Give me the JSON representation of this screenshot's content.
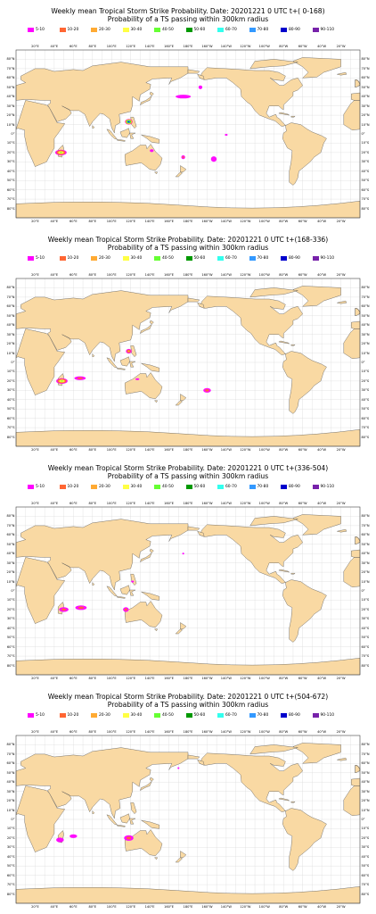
{
  "legend": [
    {
      "label": "5-10",
      "color": "#ff00ff"
    },
    {
      "label": "10-20",
      "color": "#ff6633"
    },
    {
      "label": "20-30",
      "color": "#ffaa33"
    },
    {
      "label": "30-40",
      "color": "#ffff44"
    },
    {
      "label": "40-50",
      "color": "#66ff33"
    },
    {
      "label": "50-60",
      "color": "#009900"
    },
    {
      "label": "60-70",
      "color": "#33ffee"
    },
    {
      "label": "70-80",
      "color": "#3399ff"
    },
    {
      "label": "80-90",
      "color": "#0000cc"
    },
    {
      "label": "90-110",
      "color": "#7722aa"
    }
  ],
  "colors": {
    "land": "#f9d9a3",
    "coast": "#555555",
    "grid": "#d8d8d8",
    "ocean": "#ffffff"
  },
  "lon_labels": [
    "20°E",
    "40°E",
    "60°E",
    "80°E",
    "100°E",
    "120°E",
    "140°E",
    "160°E",
    "180°E",
    "160°W",
    "140°W",
    "120°W",
    "100°W",
    "80°W",
    "60°W",
    "40°W",
    "20°W"
  ],
  "lat_labels": [
    "80°N",
    "70°N",
    "60°N",
    "50°N",
    "40°N",
    "30°N",
    "20°N",
    "10°N",
    "0°",
    "10°S",
    "20°S",
    "30°S",
    "40°S",
    "50°S",
    "60°S",
    "70°S",
    "80°S"
  ],
  "panels": [
    {
      "title1": "Weekly mean Tropical Storm Strike Probability. Date: 20201221  0 UTC    t+( 0-168)",
      "title2": "Probability of a TS passing within  300km radius",
      "features": [
        {
          "lon": 47,
          "lat": -20,
          "rx": 6,
          "ry": 3,
          "level": "40-50"
        },
        {
          "lon": 118,
          "lat": 13,
          "rx": 4,
          "ry": 3,
          "level": "90-110"
        },
        {
          "lon": 175,
          "lat": 40,
          "rx": 8,
          "ry": 2,
          "level": "5-10"
        },
        {
          "lon": 142,
          "lat": -18,
          "rx": 2,
          "ry": 1.5,
          "level": "5-10"
        },
        {
          "lon": 175,
          "lat": -25,
          "rx": 2,
          "ry": 2,
          "level": "10-20"
        },
        {
          "lon": 207,
          "lat": -27,
          "rx": 3,
          "ry": 3,
          "level": "5-10"
        },
        {
          "lon": 193,
          "lat": 50,
          "rx": 2,
          "ry": 2,
          "level": "5-10"
        },
        {
          "lon": 220,
          "lat": -1,
          "rx": 1.5,
          "ry": 1,
          "level": "5-10"
        }
      ]
    },
    {
      "title1": "Weekly mean Tropical Storm Strike Probability. Date: 20201221  0 UTC    t+(168-336)",
      "title2": "Probability of a TS passing within  300km radius",
      "features": [
        {
          "lon": 48,
          "lat": -20,
          "rx": 6,
          "ry": 3,
          "level": "40-50"
        },
        {
          "lon": 67,
          "lat": -17,
          "rx": 6,
          "ry": 2,
          "level": "10-20"
        },
        {
          "lon": 118,
          "lat": 12,
          "rx": 3,
          "ry": 2.5,
          "level": "20-30"
        },
        {
          "lon": 200,
          "lat": -30,
          "rx": 4,
          "ry": 2.5,
          "level": "10-20"
        },
        {
          "lon": 127,
          "lat": -18,
          "rx": 2,
          "ry": 1,
          "level": "5-10"
        }
      ]
    },
    {
      "title1": "Weekly mean Tropical Storm Strike Probability. Date: 20201221  0 UTC    t+(336-504)",
      "title2": "Probability of a TS passing within  300km radius",
      "features": [
        {
          "lon": 50,
          "lat": -20,
          "rx": 5,
          "ry": 2.5,
          "level": "10-20"
        },
        {
          "lon": 68,
          "lat": -18,
          "rx": 6,
          "ry": 2.5,
          "level": "10-20"
        },
        {
          "lon": 115,
          "lat": -20,
          "rx": 3,
          "ry": 2.5,
          "level": "10-20"
        },
        {
          "lon": 122,
          "lat": 10,
          "rx": 1.5,
          "ry": 1,
          "level": "5-10"
        },
        {
          "lon": 175,
          "lat": 40,
          "rx": 1,
          "ry": 1,
          "level": "5-10"
        }
      ]
    },
    {
      "title1": "Weekly mean Tropical Storm Strike Probability. Date: 20201221  0 UTC    t+(504-672)",
      "title2": "Probability of a TS passing within  300km radius",
      "features": [
        {
          "lon": 46,
          "lat": -22,
          "rx": 4,
          "ry": 2.5,
          "level": "5-10"
        },
        {
          "lon": 60,
          "lat": -18,
          "rx": 4,
          "ry": 2,
          "level": "5-10"
        },
        {
          "lon": 118,
          "lat": -20,
          "rx": 5,
          "ry": 3,
          "level": "10-20"
        },
        {
          "lon": 170,
          "lat": 55,
          "rx": 1,
          "ry": 1,
          "level": "5-10"
        }
      ]
    }
  ]
}
